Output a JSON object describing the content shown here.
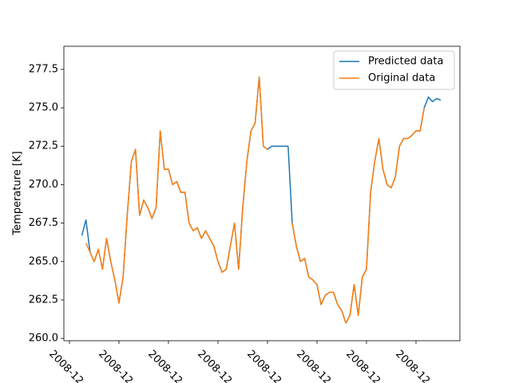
{
  "chart_data": {
    "type": "line",
    "ylabel": "Temperature [K]",
    "categories": [
      "2008-12",
      null,
      null,
      null,
      null,
      null,
      null,
      null,
      null,
      null,
      null,
      null,
      "2008-12",
      null,
      null,
      null,
      null,
      null,
      null,
      null,
      null,
      null,
      null,
      null,
      "2008-12",
      null,
      null,
      null,
      null,
      null,
      null,
      null,
      null,
      null,
      null,
      null,
      "2008-12",
      null,
      null,
      null,
      null,
      null,
      null,
      null,
      null,
      null,
      null,
      null,
      "2008-12",
      null,
      null,
      null,
      null,
      null,
      null,
      null,
      null,
      null,
      null,
      null,
      "2008-12",
      null,
      null,
      null,
      null,
      null,
      null,
      null,
      null,
      null,
      null,
      null,
      "2008-12",
      null,
      null,
      null,
      null,
      null,
      null,
      null,
      null,
      null,
      null,
      null,
      "2008-12",
      null,
      null,
      null,
      null,
      null,
      null
    ],
    "series": [
      {
        "name": "Predicted data",
        "color": "#1f77b4",
        "values": [
          null,
          null,
          null,
          266.7,
          267.7,
          265.6,
          265.0,
          265.8,
          264.5,
          266.5,
          265.0,
          263.8,
          262.3,
          264.0,
          268.0,
          271.5,
          272.3,
          268.0,
          269.0,
          268.5,
          267.8,
          268.5,
          273.5,
          271.0,
          271.0,
          270.0,
          270.2,
          269.5,
          269.5,
          267.5,
          267.0,
          267.2,
          266.5,
          267.0,
          266.5,
          266.0,
          265.0,
          264.3,
          264.5,
          266.0,
          267.5,
          264.5,
          268.5,
          271.5,
          273.5,
          274.0,
          277.0,
          272.5,
          272.3,
          272.5,
          272.5,
          272.5,
          272.5,
          272.5,
          267.5,
          266.0,
          265.0,
          265.2,
          264.0,
          263.8,
          263.5,
          262.2,
          262.8,
          263.0,
          263.0,
          262.2,
          261.8,
          261.0,
          261.5,
          263.5,
          261.5,
          264.0,
          264.5,
          269.5,
          271.5,
          273.0,
          271.0,
          270.0,
          269.8,
          270.5,
          272.5,
          273.0,
          273.0,
          273.2,
          273.5,
          273.5,
          275.0,
          275.7,
          275.4,
          275.6,
          275.5
        ]
      },
      {
        "name": "Original data",
        "color": "#ff7f0e",
        "values": [
          null,
          null,
          null,
          null,
          266.2,
          265.6,
          265.0,
          265.8,
          264.5,
          266.5,
          265.0,
          263.8,
          262.3,
          264.0,
          268.0,
          271.5,
          272.3,
          268.0,
          269.0,
          268.5,
          267.8,
          268.5,
          273.5,
          271.0,
          271.0,
          270.0,
          270.2,
          269.5,
          269.5,
          267.5,
          267.0,
          267.2,
          266.5,
          267.0,
          266.5,
          266.0,
          265.0,
          264.3,
          264.5,
          266.0,
          267.5,
          264.5,
          268.5,
          271.5,
          273.5,
          274.0,
          277.0,
          272.5,
          272.3,
          null,
          null,
          null,
          null,
          null,
          267.5,
          266.0,
          265.0,
          265.2,
          264.0,
          263.8,
          263.5,
          262.2,
          262.8,
          263.0,
          263.0,
          262.2,
          261.8,
          261.0,
          261.5,
          263.5,
          261.5,
          264.0,
          264.5,
          269.5,
          271.5,
          273.0,
          271.0,
          270.0,
          269.8,
          270.5,
          272.5,
          273.0,
          273.0,
          273.2,
          273.5,
          273.5,
          275.0,
          null,
          null,
          null,
          null
        ]
      }
    ],
    "ylim": [
      259.85,
      279.0
    ],
    "yticks": [
      {
        "value": 260,
        "label": "260.0"
      },
      262.5,
      {
        "value": 265,
        "label": "265.0"
      },
      267.5,
      {
        "value": 270,
        "label": "270.0"
      },
      272.5,
      {
        "value": 275,
        "label": "275.0"
      },
      277.5
    ],
    "legend": "upper right"
  }
}
